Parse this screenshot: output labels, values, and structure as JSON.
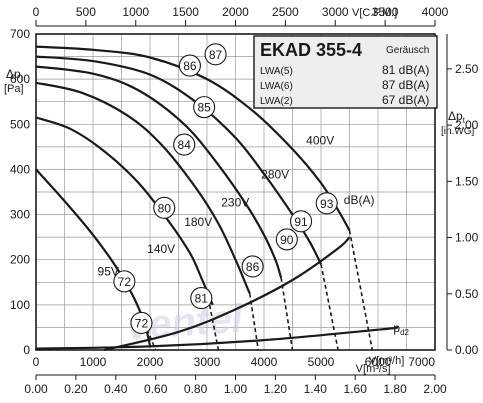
{
  "chart_data": {
    "type": "line",
    "title": "EKAD 355-4",
    "info_box": {
      "header": "Geräusch",
      "rows": [
        {
          "label": "LWA(5)",
          "value": "81 dB(A)"
        },
        {
          "label": "LWA(6)",
          "value": "87 dB(A)"
        },
        {
          "label": "LWA(2)",
          "value": "67 dB(A)"
        }
      ]
    },
    "axes": {
      "x_bottom": {
        "label": "V[m³/h]",
        "range": [
          0,
          7000
        ],
        "ticks": [
          "0",
          "1000",
          "2000",
          "3000",
          "4000",
          "5000",
          "6000",
          "7000"
        ]
      },
      "x_top": {
        "label": "V[C.F.M.]",
        "range": [
          0,
          4000
        ],
        "ticks": [
          "0",
          "500",
          "1000",
          "1500",
          "2000",
          "2500",
          "3000",
          "3500",
          "4000"
        ]
      },
      "x_second": {
        "label": "V[m³/s]",
        "range": [
          0,
          2.0
        ],
        "ticks": [
          "0.00",
          "0.20",
          "0.40",
          "0.60",
          "0.80",
          "1.00",
          "1.20",
          "1.40",
          "1.60",
          "1.80",
          "2.00"
        ]
      },
      "y_left": {
        "label": "Δp",
        "sub": "t",
        "unit": "[Pa]",
        "range": [
          0,
          700
        ],
        "ticks": [
          "0",
          "100",
          "200",
          "300",
          "400",
          "500",
          "600",
          "700"
        ]
      },
      "y_right": {
        "label": "Δp",
        "sub": "t",
        "unit": "[in.WG]",
        "range": [
          0,
          2.5
        ],
        "ticks": [
          "0.00",
          "0.50",
          "1.00",
          "1.50",
          "2.00",
          "2.50"
        ]
      }
    },
    "grid": true,
    "series": [
      {
        "name": "400V",
        "points": [
          [
            0,
            672
          ],
          [
            1000,
            665
          ],
          [
            2000,
            648
          ],
          [
            3000,
            600
          ],
          [
            3800,
            530
          ],
          [
            4500,
            445
          ],
          [
            5000,
            370
          ],
          [
            5300,
            310
          ],
          [
            5500,
            265
          ]
        ]
      },
      {
        "name": "280V",
        "points": [
          [
            0,
            650
          ],
          [
            1000,
            640
          ],
          [
            2000,
            610
          ],
          [
            2800,
            550
          ],
          [
            3500,
            470
          ],
          [
            4000,
            390
          ],
          [
            4500,
            300
          ],
          [
            4800,
            240
          ],
          [
            5000,
            190
          ]
        ]
      },
      {
        "name": "230V",
        "points": [
          [
            0,
            628
          ],
          [
            1000,
            612
          ],
          [
            1800,
            575
          ],
          [
            2600,
            500
          ],
          [
            3200,
            410
          ],
          [
            3700,
            320
          ],
          [
            4000,
            255
          ],
          [
            4200,
            200
          ],
          [
            4300,
            160
          ]
        ]
      },
      {
        "name": "180V",
        "points": [
          [
            0,
            592
          ],
          [
            800,
            570
          ],
          [
            1600,
            520
          ],
          [
            2200,
            455
          ],
          [
            2800,
            360
          ],
          [
            3200,
            280
          ],
          [
            3500,
            200
          ],
          [
            3700,
            140
          ],
          [
            3750,
            125
          ]
        ]
      },
      {
        "name": "140V",
        "points": [
          [
            0,
            515
          ],
          [
            600,
            490
          ],
          [
            1200,
            440
          ],
          [
            1800,
            370
          ],
          [
            2300,
            290
          ],
          [
            2700,
            215
          ],
          [
            2900,
            160
          ],
          [
            3000,
            130
          ],
          [
            3100,
            100
          ]
        ]
      },
      {
        "name": "95V",
        "points": [
          [
            0,
            400
          ],
          [
            500,
            330
          ],
          [
            1000,
            255
          ],
          [
            1400,
            185
          ],
          [
            1700,
            120
          ],
          [
            1900,
            60
          ],
          [
            2000,
            10
          ]
        ]
      }
    ],
    "curve_labels": [
      "400V",
      "280V",
      "230V",
      "180V",
      "140V",
      "95V"
    ],
    "system_curves": [
      {
        "name": "p_d2",
        "points": [
          [
            0,
            3
          ],
          [
            2000,
            8
          ],
          [
            4000,
            22
          ],
          [
            6000,
            45
          ],
          [
            6350,
            50
          ]
        ]
      },
      {
        "name": "iso",
        "points": [
          [
            1200,
            0
          ],
          [
            2500,
            40
          ],
          [
            3500,
            90
          ],
          [
            4500,
            155
          ],
          [
            5300,
            225
          ],
          [
            5500,
            250
          ]
        ]
      }
    ],
    "dashed_extensions": [
      [
        [
          1900,
          60
        ],
        [
          2100,
          0
        ]
      ],
      [
        [
          3000,
          130
        ],
        [
          3200,
          0
        ]
      ],
      [
        [
          3750,
          125
        ],
        [
          3900,
          0
        ]
      ],
      [
        [
          4300,
          160
        ],
        [
          4500,
          0
        ]
      ],
      [
        [
          5000,
          190
        ],
        [
          5300,
          0
        ]
      ],
      [
        [
          5500,
          265
        ],
        [
          5900,
          0
        ]
      ]
    ],
    "noise_markers": [
      {
        "value": "87",
        "x": 3150,
        "y": 655
      },
      {
        "value": "86",
        "x": 2700,
        "y": 630
      },
      {
        "value": "85",
        "x": 2950,
        "y": 538
      },
      {
        "value": "84",
        "x": 2600,
        "y": 455
      },
      {
        "value": "80",
        "x": 2250,
        "y": 315
      },
      {
        "value": "93",
        "x": 5100,
        "y": 325
      },
      {
        "value": "91",
        "x": 4650,
        "y": 285
      },
      {
        "value": "90",
        "x": 4400,
        "y": 245
      },
      {
        "value": "86",
        "x": 3800,
        "y": 185
      },
      {
        "value": "81",
        "x": 2900,
        "y": 115
      },
      {
        "value": "72",
        "x": 1550,
        "y": 152
      },
      {
        "value": "72",
        "x": 1850,
        "y": 60
      }
    ],
    "annotations": [
      {
        "text": "dB(A)",
        "x": 5400,
        "y": 323
      },
      {
        "text": "p",
        "sub": "d2",
        "x": 6270,
        "y": 40
      },
      {
        "text": "400V",
        "x": 4740,
        "y": 455
      },
      {
        "text": "280V",
        "x": 3950,
        "y": 380
      },
      {
        "text": "230V",
        "x": 3250,
        "y": 318
      },
      {
        "text": "180V",
        "x": 2600,
        "y": 275
      },
      {
        "text": "140V",
        "x": 1950,
        "y": 215
      },
      {
        "text": "95V",
        "x": 1080,
        "y": 165
      }
    ],
    "watermark": "ventel"
  }
}
